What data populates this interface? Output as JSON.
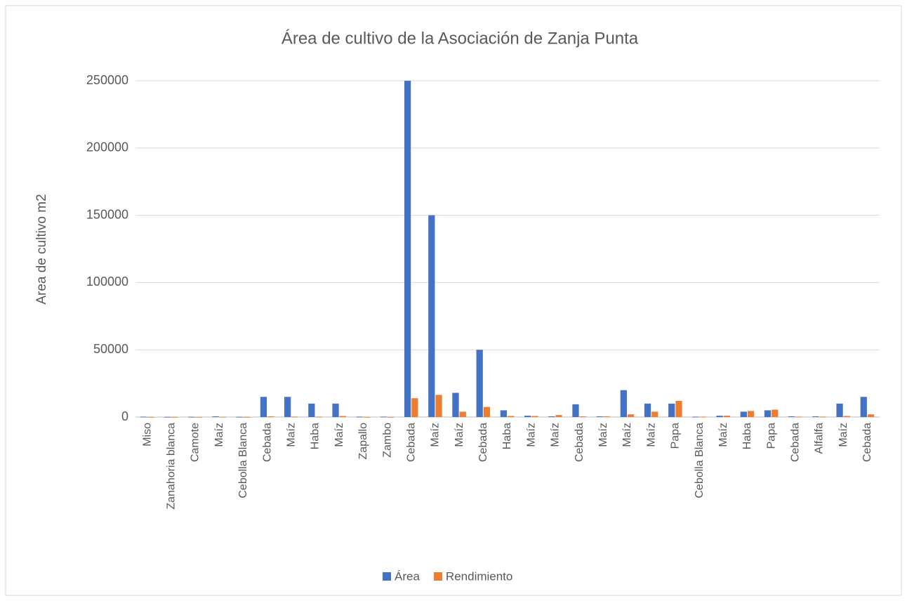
{
  "chart_data": {
    "type": "bar",
    "title": "Área de cultivo de la Asociación de Zanja Punta",
    "y_label": "Area  de cultivo m2",
    "categories": [
      "Miso",
      "Zanahoria blanca",
      "Camote",
      "Maíz",
      "Cebolla Blanca",
      "Cebada",
      "Maíz",
      "Haba",
      "Maíz",
      "Zapallo",
      "Zambo",
      "Cebada",
      "Maíz",
      "Maíz",
      "Cebada",
      "Haba",
      "Maíz",
      "Maíz",
      "Cebada",
      "Maíz",
      "Maíz",
      "Maíz",
      "Papa",
      "Cebolla Blanca",
      "Maíz",
      "Haba",
      "Papa",
      "Cebada",
      "Alfalfa",
      "Maíz",
      "Cebada"
    ],
    "series": [
      {
        "name": "Área",
        "color": "#4472c4",
        "values": [
          300,
          200,
          200,
          500,
          200,
          15000,
          15000,
          10000,
          10000,
          300,
          300,
          250000,
          150000,
          18000,
          50000,
          5000,
          1000,
          500,
          9500,
          500,
          20000,
          10000,
          10000,
          300,
          1000,
          4000,
          5000,
          500,
          500,
          10000,
          15000
        ]
      },
      {
        "name": "Rendimiento",
        "color": "#ed7d31",
        "values": [
          100,
          100,
          100,
          200,
          100,
          500,
          300,
          300,
          800,
          100,
          100,
          14000,
          16500,
          4000,
          7500,
          800,
          800,
          1500,
          500,
          500,
          2000,
          4000,
          12000,
          300,
          1000,
          4500,
          5500,
          300,
          300,
          800,
          2000
        ]
      }
    ],
    "ylim": [
      0,
      250000
    ],
    "yticks": [
      0,
      50000,
      100000,
      150000,
      200000,
      250000
    ],
    "grid": true,
    "legend": "bottom"
  }
}
